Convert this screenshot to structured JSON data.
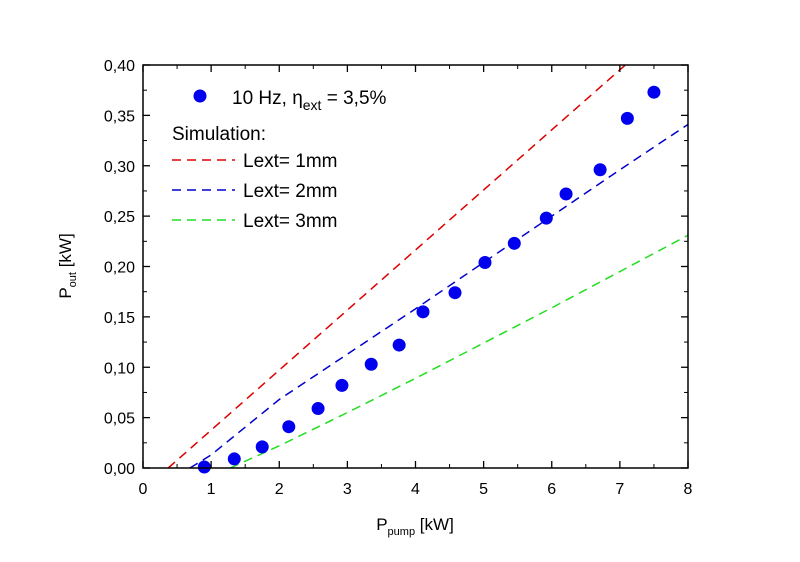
{
  "chart_data": {
    "type": "scatter",
    "xlabel": {
      "main": "P",
      "sub": "pump",
      "unit": " [kW]"
    },
    "ylabel": {
      "main": "P",
      "sub": "out",
      "unit": " [kW]"
    },
    "xlim": [
      0,
      8
    ],
    "ylim": [
      0,
      0.4
    ],
    "x_ticks": [
      "0",
      "1",
      "2",
      "3",
      "4",
      "5",
      "6",
      "7",
      "8"
    ],
    "y_ticks": [
      "0,00",
      "0,05",
      "0,10",
      "0,15",
      "0,20",
      "0,25",
      "0,30",
      "0,35",
      "0,40"
    ],
    "grid": false,
    "legend_placement": "top-left",
    "legend_heading": "Simulation:",
    "series": [
      {
        "name": "10 Hz, η_ext = 3,5%",
        "label_pre": "10 Hz, η",
        "label_sub": "ext",
        "label_post": " = 3,5%",
        "kind": "markers",
        "color": "#0000ee",
        "x": [
          0.9,
          1.34,
          1.75,
          2.14,
          2.57,
          2.92,
          3.35,
          3.76,
          4.11,
          4.58,
          5.02,
          5.45,
          5.92,
          6.21,
          6.71,
          7.11,
          7.5
        ],
        "y": [
          0.001,
          0.009,
          0.021,
          0.041,
          0.059,
          0.082,
          0.103,
          0.122,
          0.155,
          0.174,
          0.204,
          0.223,
          0.248,
          0.272,
          0.296,
          0.347,
          0.373
        ]
      },
      {
        "name": "Lext= 1mm",
        "kind": "dashed",
        "color": "#dd0000",
        "x": [
          0.37,
          7.08
        ],
        "y": [
          0.0,
          0.4
        ]
      },
      {
        "name": "Lext= 2mm",
        "kind": "dashed",
        "color": "#0000cc",
        "x": [
          0.69,
          1,
          2,
          3,
          4,
          5,
          6,
          7,
          8
        ],
        "y": [
          0,
          0.013,
          0.068,
          0.113,
          0.158,
          0.204,
          0.25,
          0.296,
          0.341
        ]
      },
      {
        "name": "Lext= 3mm",
        "kind": "dashed",
        "color": "#22dd22",
        "x": [
          1.28,
          2,
          3,
          4,
          5,
          6,
          7,
          8
        ],
        "y": [
          0,
          0.022,
          0.055,
          0.089,
          0.124,
          0.159,
          0.195,
          0.231
        ]
      }
    ]
  }
}
